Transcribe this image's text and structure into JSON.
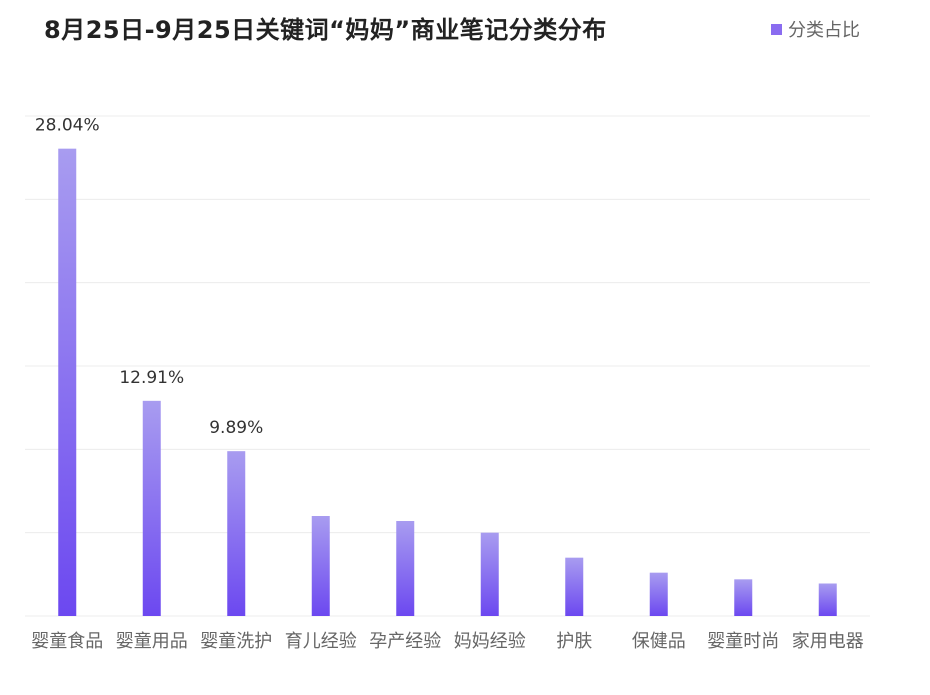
{
  "title": "8月25日-9月25日关键词“妈妈”商业笔记分类分布",
  "legend": {
    "label": "分类占比"
  },
  "colors": {
    "bar_top": "#a89cf0",
    "bar_bottom": "#6c48f0",
    "grid": "#ececec",
    "legend_swatch": "#8a6cf0"
  },
  "chart_data": {
    "type": "bar",
    "categories": [
      "婴童食品",
      "婴童用品",
      "婴童洗护",
      "育儿经验",
      "孕产经验",
      "妈妈经验",
      "护肤",
      "保健品",
      "婴童时尚",
      "家用电器"
    ],
    "series": [
      {
        "name": "分类占比",
        "values": [
          28.04,
          12.91,
          9.89,
          6.0,
          5.7,
          5.0,
          3.5,
          2.6,
          2.2,
          1.95
        ]
      }
    ],
    "data_labels": [
      "28.04%",
      "12.91%",
      "9.89%",
      "",
      "",
      "",
      "",
      "",
      "",
      ""
    ],
    "ylim": [
      0,
      30
    ],
    "grid": true,
    "legend_position": "top-right"
  }
}
